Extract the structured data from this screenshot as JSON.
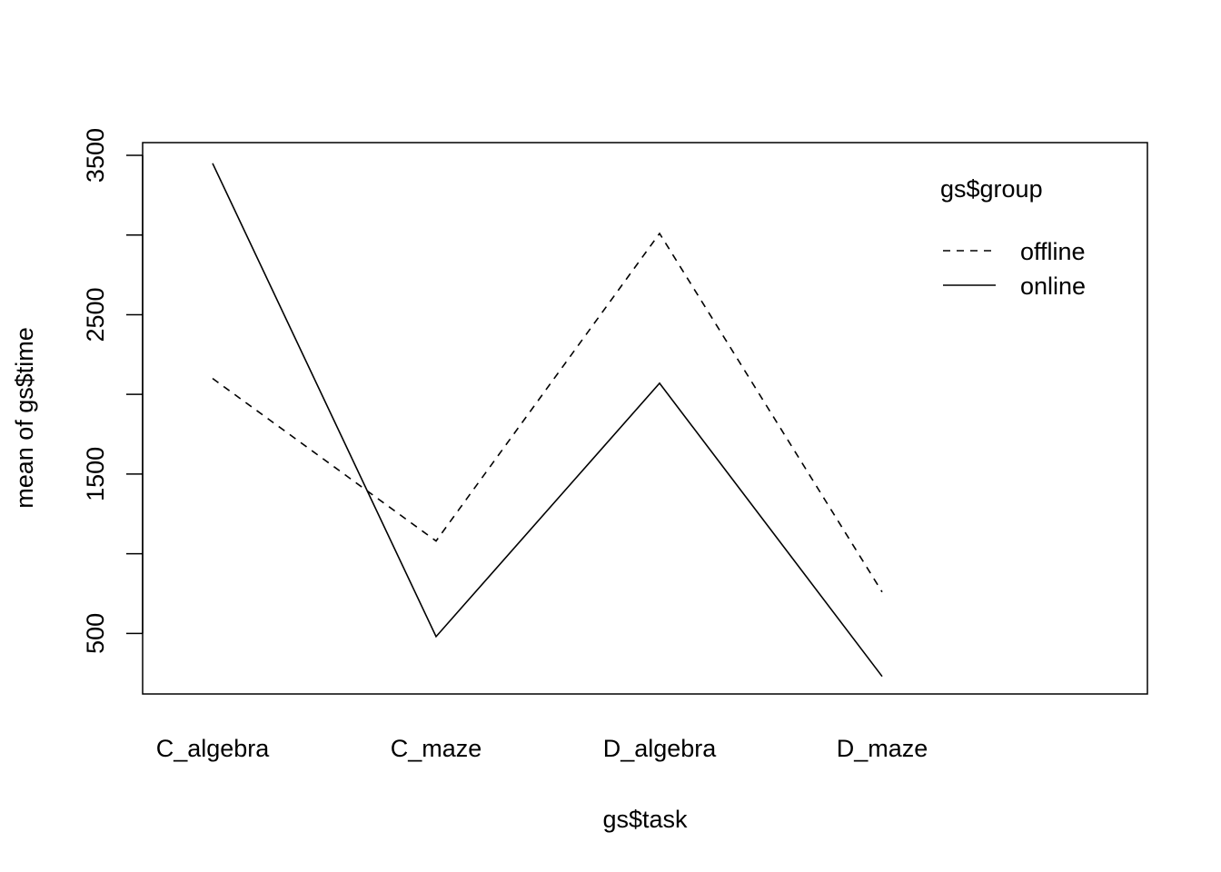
{
  "chart_data": {
    "type": "line",
    "categories": [
      "C_algebra",
      "C_maze",
      "D_algebra",
      "D_maze"
    ],
    "xlabel": "gs$task",
    "ylabel": "mean of  gs$time",
    "ylim": [
      120,
      3580
    ],
    "yticks": [
      "500",
      "1500",
      "2500",
      "3500"
    ],
    "grid": false,
    "legend": {
      "title": "gs$group",
      "placement": "top-right"
    },
    "series": [
      {
        "name": "offline",
        "style": "dashed",
        "values": [
          2100,
          1080,
          3010,
          760
        ]
      },
      {
        "name": "online",
        "style": "solid",
        "values": [
          3450,
          480,
          2070,
          230
        ]
      }
    ]
  }
}
